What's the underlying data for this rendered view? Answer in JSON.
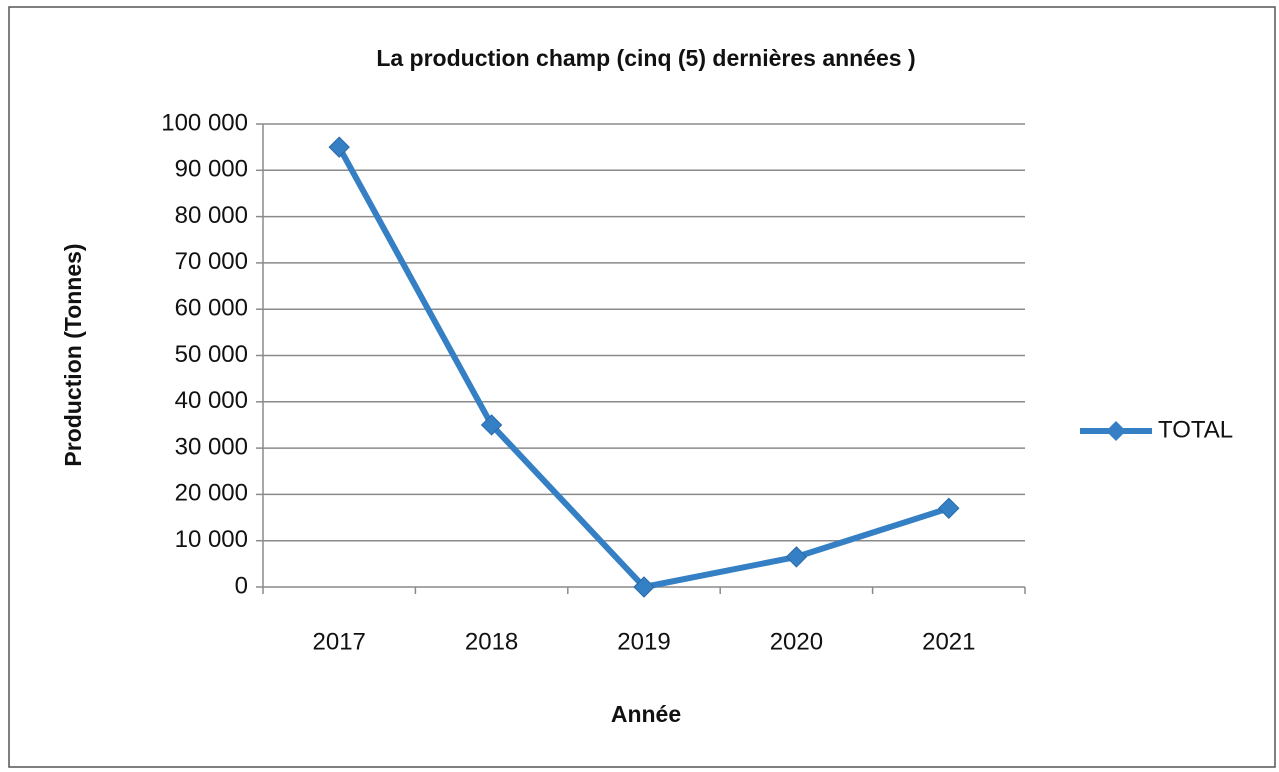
{
  "chart_data": {
    "type": "line",
    "title": "La production champ  (cinq (5) dernières années )",
    "x_label": "Année",
    "y_label": "Production (Tonnes)",
    "categories": [
      "2017",
      "2018",
      "2019",
      "2020",
      "2021"
    ],
    "series": [
      {
        "name": "TOTAL",
        "color": "#3580c4",
        "values": [
          95000,
          35000,
          0,
          6500,
          17000
        ]
      }
    ],
    "ylim": [
      0,
      100000
    ],
    "yticks": [
      {
        "value": 0,
        "label": "0"
      },
      {
        "value": 10000,
        "label": "10 000"
      },
      {
        "value": 20000,
        "label": "20 000"
      },
      {
        "value": 30000,
        "label": "30 000"
      },
      {
        "value": 40000,
        "label": "40 000"
      },
      {
        "value": 50000,
        "label": "50 000"
      },
      {
        "value": 60000,
        "label": "60 000"
      },
      {
        "value": 70000,
        "label": "70 000"
      },
      {
        "value": 80000,
        "label": "80 000"
      },
      {
        "value": 90000,
        "label": "90 000"
      },
      {
        "value": 100000,
        "label": "100 000"
      }
    ],
    "grid": true,
    "legend": "right"
  }
}
